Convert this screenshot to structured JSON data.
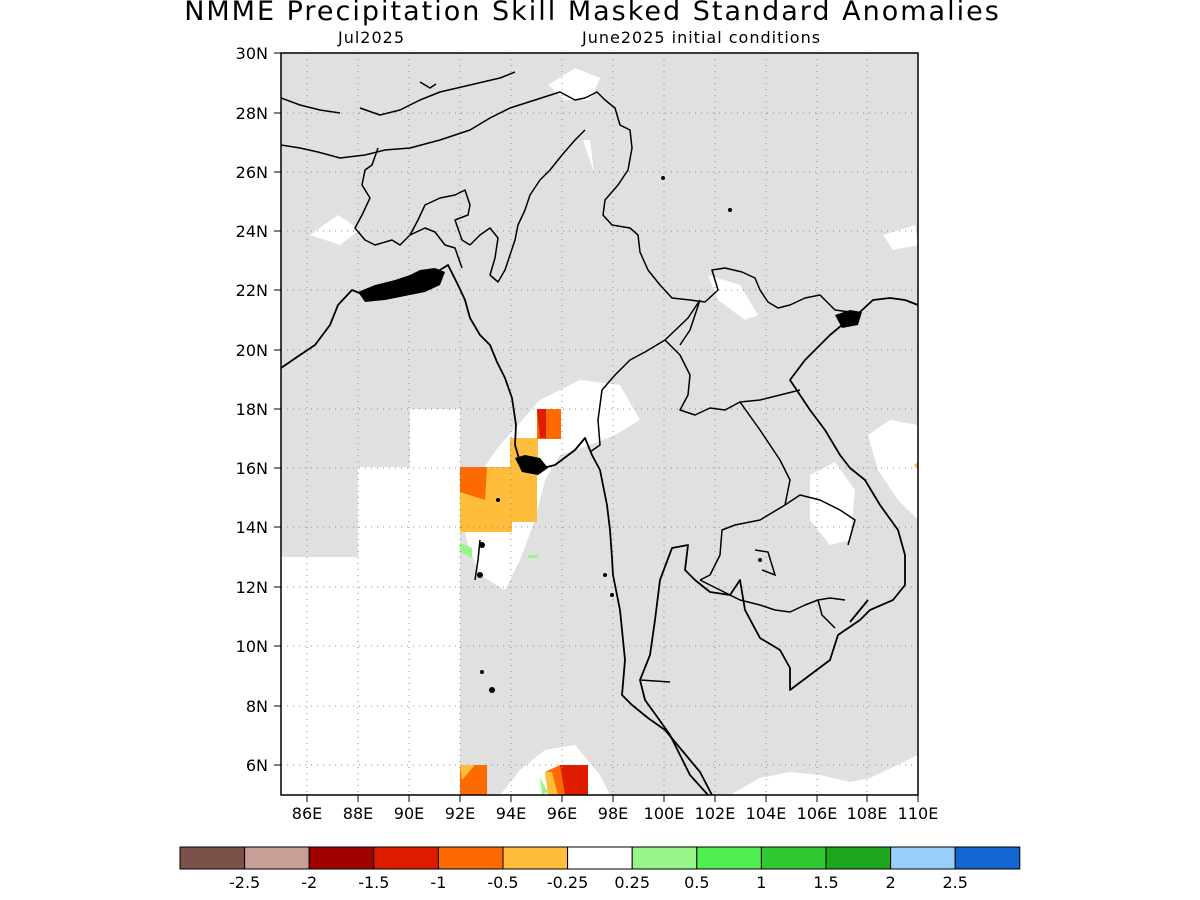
{
  "title": "NMME Precipitation Skill Masked Standard Anomalies",
  "subtitle_left": "Jul2025",
  "subtitle_right": "June2025 initial conditions",
  "map": {
    "region": "South and Southeast Asia (Bay of Bengal, Myanmar, Thailand, Indochina)",
    "lon_range_deg_e": [
      85,
      110
    ],
    "lat_range_deg_n": [
      5,
      30
    ],
    "lat_ticks": [
      "30N",
      "28N",
      "26N",
      "24N",
      "22N",
      "20N",
      "18N",
      "16N",
      "14N",
      "12N",
      "10N",
      "8N",
      "6N"
    ],
    "lon_ticks": [
      "86E",
      "88E",
      "90E",
      "92E",
      "94E",
      "96E",
      "98E",
      "100E",
      "102E",
      "104E",
      "106E",
      "108E",
      "110E"
    ],
    "colors": {
      "masked_gray": "#e0e0e0",
      "near_normal_white": "#ffffff",
      "dry_orange": "#fd6a00",
      "dry_light_orange": "#ffbd3c",
      "dry_red": "#df1b00",
      "wet_light_green": "#97f58a"
    }
  },
  "legend": {
    "colors": [
      "#7c5149",
      "#c89e96",
      "#a10000",
      "#df1b00",
      "#fd6a00",
      "#ffbd3c",
      "#ffffff",
      "#97f58a",
      "#50ef50",
      "#32c832",
      "#1ea71e",
      "#98cff8",
      "#1464d2"
    ],
    "labels": [
      "-2.5",
      "-2",
      "-1.5",
      "-1",
      "-0.5",
      "-0.25",
      "0.25",
      "0.5",
      "1",
      "1.5",
      "2",
      "2.5"
    ]
  }
}
